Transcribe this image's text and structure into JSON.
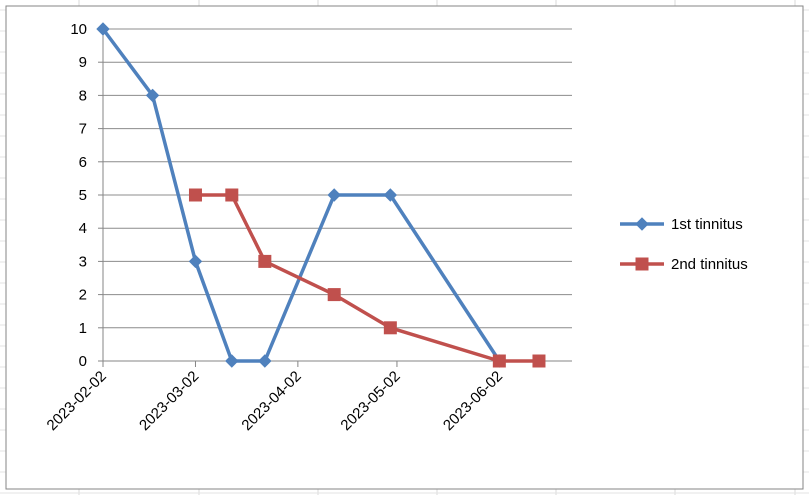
{
  "chart_data": {
    "type": "line",
    "title": "",
    "xlabel": "",
    "ylabel": "",
    "x_type": "date",
    "xlim": [
      "2023-02-02",
      "2023-06-24"
    ],
    "ylim": [
      0,
      10
    ],
    "y_ticks": [
      0,
      1,
      2,
      3,
      4,
      5,
      6,
      7,
      8,
      9,
      10
    ],
    "x_ticks": [
      "2023-02-02",
      "2023-03-02",
      "2023-04-02",
      "2023-05-02",
      "2023-06-02"
    ],
    "grid": {
      "horizontal": true,
      "vertical": false
    },
    "legend_position": "right",
    "series": [
      {
        "name": "1st tinnitus",
        "color": "#4F81BD",
        "marker": "diamond",
        "points": [
          {
            "x": "2023-02-02",
            "y": 10
          },
          {
            "x": "2023-02-17",
            "y": 8
          },
          {
            "x": "2023-03-02",
            "y": 3
          },
          {
            "x": "2023-03-13",
            "y": 0
          },
          {
            "x": "2023-03-23",
            "y": 0
          },
          {
            "x": "2023-04-13",
            "y": 5
          },
          {
            "x": "2023-04-30",
            "y": 5
          },
          {
            "x": "2023-06-02",
            "y": 0
          }
        ]
      },
      {
        "name": "2nd tinnitus",
        "color": "#C0504D",
        "marker": "square",
        "points": [
          {
            "x": "2023-03-02",
            "y": 5
          },
          {
            "x": "2023-03-13",
            "y": 5
          },
          {
            "x": "2023-03-23",
            "y": 3
          },
          {
            "x": "2023-04-13",
            "y": 2
          },
          {
            "x": "2023-04-30",
            "y": 1
          },
          {
            "x": "2023-06-02",
            "y": 0
          },
          {
            "x": "2023-06-14",
            "y": 0
          }
        ]
      }
    ]
  }
}
